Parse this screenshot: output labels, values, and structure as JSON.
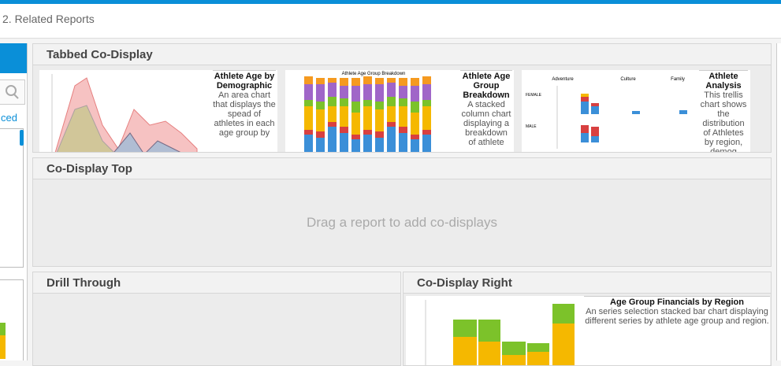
{
  "header": {
    "title": "2. Related Reports"
  },
  "sidebar": {
    "link": "ced"
  },
  "panels": {
    "tabbed": {
      "title": "Tabbed Co-Display",
      "reports": [
        {
          "title": "Athlete Age by Demographic",
          "description": "An area chart that displays the spead of athletes in each age group by"
        },
        {
          "title": "Athlete Age Group Breakdown",
          "description": "A stacked column chart displaying a breakdown of athlete",
          "chart_title": "Athlete Age Group Breakdown"
        },
        {
          "title": "Athlete Analysis",
          "description": "This trellis chart shows the distribution of Athletes by region, demog",
          "facets": [
            "Adventure",
            "Culture",
            "Family"
          ],
          "rows": [
            "FEMALE",
            "MALE"
          ]
        }
      ]
    },
    "top": {
      "title": "Co-Display Top",
      "placeholder": "Drag a report to add co-displays"
    },
    "drill": {
      "title": "Drill Through"
    },
    "right": {
      "title": "Co-Display Right",
      "report": {
        "title": "Age Group Financials by Region",
        "description": "An series selection stacked bar chart displaying different series by athlete age group and region."
      }
    }
  }
}
